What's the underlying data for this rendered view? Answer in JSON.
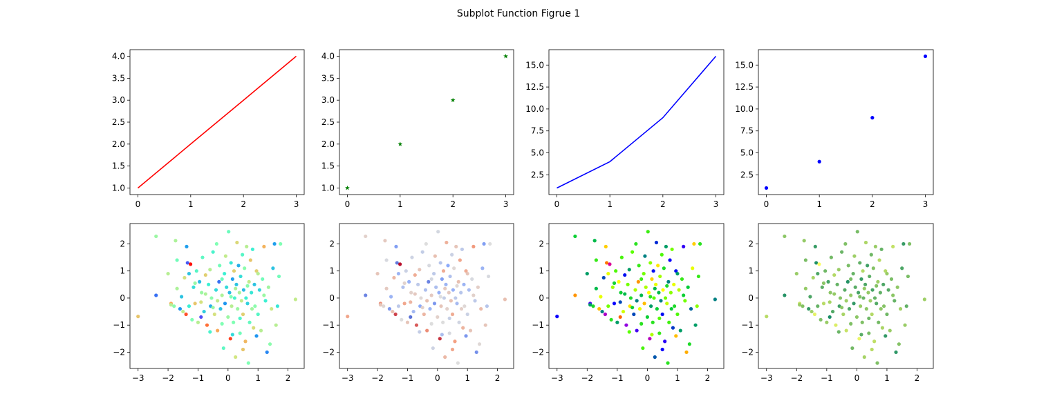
{
  "figure": {
    "title": "Subplot Function Figrue 1"
  },
  "chart_data": [
    {
      "type": "line",
      "x": [
        0,
        1,
        2,
        3
      ],
      "y": [
        1,
        2,
        3,
        4
      ],
      "color": "#ff0000",
      "xlim": [
        -0.15,
        3.15
      ],
      "ylim": [
        0.85,
        4.15
      ],
      "xticks": [
        0,
        1,
        2,
        3
      ],
      "yticks": [
        1.0,
        1.5,
        2.0,
        2.5,
        3.0,
        3.5,
        4.0
      ],
      "ytick_labels": [
        "1.0",
        "1.5",
        "2.0",
        "2.5",
        "3.0",
        "3.5",
        "4.0"
      ]
    },
    {
      "type": "scatter",
      "marker": "star",
      "x": [
        0,
        1,
        2,
        3
      ],
      "y": [
        1,
        2,
        3,
        4
      ],
      "color": "#008000",
      "xlim": [
        -0.15,
        3.15
      ],
      "ylim": [
        0.85,
        4.15
      ],
      "xticks": [
        0,
        1,
        2,
        3
      ],
      "yticks": [
        1.0,
        1.5,
        2.0,
        2.5,
        3.0,
        3.5,
        4.0
      ],
      "ytick_labels": [
        "1.0",
        "1.5",
        "2.0",
        "2.5",
        "3.0",
        "3.5",
        "4.0"
      ]
    },
    {
      "type": "line",
      "x": [
        0,
        1,
        2,
        3
      ],
      "y": [
        1,
        4,
        9,
        16
      ],
      "color": "#0000ff",
      "xlim": [
        -0.15,
        3.15
      ],
      "ylim": [
        0.25,
        16.75
      ],
      "xticks": [
        0,
        1,
        2,
        3
      ],
      "yticks": [
        2.5,
        5.0,
        7.5,
        10.0,
        12.5,
        15.0
      ],
      "ytick_labels": [
        "2.5",
        "5.0",
        "7.5",
        "10.0",
        "12.5",
        "15.0"
      ]
    },
    {
      "type": "scatter",
      "marker": "dot",
      "x": [
        0,
        1,
        2,
        3
      ],
      "y": [
        1,
        4,
        9,
        16
      ],
      "color": "#0000ff",
      "xlim": [
        -0.15,
        3.15
      ],
      "ylim": [
        0.25,
        16.75
      ],
      "xticks": [
        0,
        1,
        2,
        3
      ],
      "yticks": [
        2.5,
        5.0,
        7.5,
        10.0,
        12.5,
        15.0
      ],
      "ytick_labels": [
        "2.5",
        "5.0",
        "7.5",
        "10.0",
        "12.5",
        "15.0"
      ]
    },
    {
      "type": "scatter",
      "marker": "dot",
      "colormap": "rainbow",
      "points_source": "shared_points",
      "xlim": [
        -3.27,
        2.54
      ],
      "ylim": [
        -2.6,
        2.75
      ],
      "xticks": [
        -3,
        -2,
        -1,
        0,
        1,
        2
      ],
      "xtick_labels": [
        "−3",
        "−2",
        "−1",
        "0",
        "1",
        "2"
      ],
      "yticks": [
        -2,
        -1,
        0,
        1,
        2
      ],
      "ytick_labels": [
        "−2",
        "−1",
        "0",
        "1",
        "2"
      ]
    },
    {
      "type": "scatter",
      "marker": "dot",
      "colormap": "coolwarm",
      "points_source": "shared_points",
      "xlim": [
        -3.27,
        2.54
      ],
      "ylim": [
        -2.6,
        2.75
      ],
      "xticks": [
        -3,
        -2,
        -1,
        0,
        1,
        2
      ],
      "xtick_labels": [
        "−3",
        "−2",
        "−1",
        "0",
        "1",
        "2"
      ],
      "yticks": [
        -2,
        -1,
        0,
        1,
        2
      ],
      "ytick_labels": [
        "−2",
        "−1",
        "0",
        "1",
        "2"
      ]
    },
    {
      "type": "scatter",
      "marker": "dot",
      "colormap": "prism",
      "points_source": "shared_points",
      "xlim": [
        -3.27,
        2.54
      ],
      "ylim": [
        -2.6,
        2.75
      ],
      "xticks": [
        -3,
        -2,
        -1,
        0,
        1,
        2
      ],
      "xtick_labels": [
        "−3",
        "−2",
        "−1",
        "0",
        "1",
        "2"
      ],
      "yticks": [
        -2,
        -1,
        0,
        1,
        2
      ],
      "ytick_labels": [
        "−2",
        "−1",
        "0",
        "1",
        "2"
      ]
    },
    {
      "type": "scatter",
      "marker": "dot",
      "colormap": "summer",
      "points_source": "shared_points",
      "xlim": [
        -3.27,
        2.54
      ],
      "ylim": [
        -2.6,
        2.75
      ],
      "xticks": [
        -3,
        -2,
        -1,
        0,
        1,
        2
      ],
      "xtick_labels": [
        "−3",
        "−2",
        "−1",
        "0",
        "1",
        "2"
      ],
      "yticks": [
        -2,
        -1,
        0,
        1,
        2
      ],
      "ytick_labels": [
        "−2",
        "−1",
        "0",
        "1",
        "2"
      ]
    }
  ],
  "shared_points": [
    [
      -3.0,
      -0.68,
      0.72
    ],
    [
      -2.4,
      0.1,
      0.15
    ],
    [
      -2.4,
      2.28,
      0.55
    ],
    [
      -2.0,
      0.9,
      0.6
    ],
    [
      -1.9,
      -0.2,
      0.78
    ],
    [
      -1.8,
      -0.3,
      0.52
    ],
    [
      -1.75,
      2.12,
      0.58
    ],
    [
      -1.7,
      1.4,
      0.48
    ],
    [
      -1.6,
      -0.4,
      0.2
    ],
    [
      -1.55,
      0.05,
      0.3
    ],
    [
      -1.5,
      -0.5,
      0.62
    ],
    [
      -1.45,
      0.75,
      0.66
    ],
    [
      -1.4,
      -0.6,
      0.9
    ],
    [
      -1.38,
      1.9,
      0.22
    ],
    [
      -1.35,
      1.3,
      0.12
    ],
    [
      -1.3,
      -0.3,
      0.4
    ],
    [
      -1.25,
      1.25,
      0.98
    ],
    [
      -1.2,
      -0.8,
      0.5
    ],
    [
      -1.15,
      0.4,
      0.36
    ],
    [
      -1.1,
      -0.2,
      0.72
    ],
    [
      -1.05,
      1.0,
      0.44
    ],
    [
      -1.0,
      -0.9,
      0.6
    ],
    [
      -0.95,
      0.6,
      0.28
    ],
    [
      -0.9,
      -0.7,
      0.1
    ],
    [
      -0.88,
      0.2,
      0.55
    ],
    [
      -0.85,
      1.5,
      0.45
    ],
    [
      -0.8,
      -0.5,
      0.32
    ],
    [
      -0.75,
      0.85,
      0.7
    ],
    [
      -0.7,
      -1.0,
      0.86
    ],
    [
      -0.65,
      0.5,
      0.4
    ],
    [
      -0.6,
      1.05,
      0.6
    ],
    [
      -0.58,
      -0.3,
      0.25
    ],
    [
      -0.55,
      0.0,
      0.52
    ],
    [
      -0.5,
      1.7,
      0.42
    ],
    [
      -0.45,
      -0.6,
      0.66
    ],
    [
      -0.4,
      0.3,
      0.35
    ],
    [
      -0.38,
      2.0,
      0.5
    ],
    [
      -0.35,
      -1.2,
      0.78
    ],
    [
      -0.3,
      0.6,
      0.15
    ],
    [
      -0.28,
      1.2,
      0.48
    ],
    [
      -0.25,
      -0.4,
      0.3
    ],
    [
      -0.2,
      0.1,
      0.58
    ],
    [
      -0.15,
      -1.85,
      0.45
    ],
    [
      -0.12,
      0.9,
      0.4
    ],
    [
      -0.1,
      -0.2,
      0.2
    ],
    [
      -0.08,
      1.55,
      0.62
    ],
    [
      -0.05,
      0.4,
      0.35
    ],
    [
      0.0,
      -0.7,
      0.55
    ],
    [
      0.02,
      2.45,
      0.47
    ],
    [
      0.05,
      0.2,
      0.28
    ],
    [
      0.08,
      -1.5,
      0.92
    ],
    [
      0.1,
      1.3,
      0.38
    ],
    [
      0.12,
      -0.3,
      0.6
    ],
    [
      0.15,
      0.7,
      0.22
    ],
    [
      0.18,
      -0.9,
      0.5
    ],
    [
      0.2,
      1.0,
      0.7
    ],
    [
      0.22,
      0.0,
      0.42
    ],
    [
      0.25,
      -2.18,
      0.65
    ],
    [
      0.28,
      0.5,
      0.3
    ],
    [
      0.3,
      2.05,
      0.68
    ],
    [
      0.32,
      -0.4,
      0.55
    ],
    [
      0.35,
      1.2,
      0.25
    ],
    [
      0.38,
      0.2,
      0.58
    ],
    [
      0.4,
      -1.3,
      0.48
    ],
    [
      0.42,
      0.8,
      0.36
    ],
    [
      0.45,
      -0.1,
      0.62
    ],
    [
      0.48,
      1.6,
      0.44
    ],
    [
      0.5,
      -0.6,
      0.7
    ],
    [
      0.52,
      0.3,
      0.28
    ],
    [
      0.55,
      1.1,
      0.52
    ],
    [
      0.58,
      -1.6,
      0.75
    ],
    [
      0.6,
      0.0,
      0.4
    ],
    [
      0.62,
      1.9,
      0.6
    ],
    [
      0.65,
      -0.2,
      0.33
    ],
    [
      0.68,
      -2.4,
      0.5
    ],
    [
      0.7,
      0.6,
      0.62
    ],
    [
      0.72,
      -0.9,
      0.46
    ],
    [
      0.75,
      1.4,
      0.72
    ],
    [
      0.78,
      0.2,
      0.38
    ],
    [
      0.8,
      -0.4,
      0.56
    ],
    [
      0.82,
      1.8,
      0.4
    ],
    [
      0.85,
      -1.1,
      0.67
    ],
    [
      0.88,
      0.5,
      0.3
    ],
    [
      0.9,
      -0.3,
      0.52
    ],
    [
      0.95,
      1.0,
      0.7
    ],
    [
      1.0,
      -0.6,
      0.44
    ],
    [
      1.05,
      0.3,
      0.34
    ],
    [
      1.1,
      -1.2,
      0.6
    ],
    [
      1.15,
      0.7,
      0.48
    ],
    [
      1.2,
      1.9,
      0.76
    ],
    [
      1.25,
      -0.1,
      0.4
    ],
    [
      1.3,
      -2.0,
      0.18
    ],
    [
      1.35,
      0.4,
      0.56
    ],
    [
      1.4,
      -1.7,
      0.52
    ],
    [
      1.45,
      -0.4,
      0.64
    ],
    [
      1.5,
      1.1,
      0.3
    ],
    [
      1.55,
      2.0,
      0.22
    ],
    [
      1.6,
      -1.0,
      0.6
    ],
    [
      1.65,
      -0.3,
      0.38
    ],
    [
      1.7,
      0.8,
      0.48
    ],
    [
      1.75,
      2.0,
      0.5
    ],
    [
      2.25,
      -0.05,
      0.62
    ],
    [
      -1.7,
      0.35,
      0.58
    ],
    [
      -1.3,
      0.9,
      0.3
    ],
    [
      -0.9,
      -0.15,
      0.66
    ],
    [
      -0.6,
      -1.25,
      0.42
    ],
    [
      -0.2,
      -0.95,
      0.5
    ],
    [
      0.15,
      -1.35,
      0.35
    ],
    [
      0.5,
      -1.9,
      0.72
    ],
    [
      0.95,
      -1.4,
      0.2
    ],
    [
      1.2,
      0.1,
      0.55
    ],
    [
      -1.9,
      -0.25,
      0.6
    ],
    [
      -0.75,
      0.15,
      0.58
    ],
    [
      -0.35,
      -0.1,
      0.62
    ],
    [
      0.25,
      0.35,
      0.58
    ],
    [
      0.65,
      0.45,
      0.52
    ],
    [
      -0.2,
      0.7,
      0.47
    ],
    [
      0.4,
      -0.75,
      0.43
    ],
    [
      -1.1,
      0.55,
      0.54
    ],
    [
      1.0,
      0.9,
      0.6
    ],
    [
      -0.5,
      -0.35,
      0.55
    ],
    [
      0.1,
      0.05,
      0.5
    ]
  ]
}
